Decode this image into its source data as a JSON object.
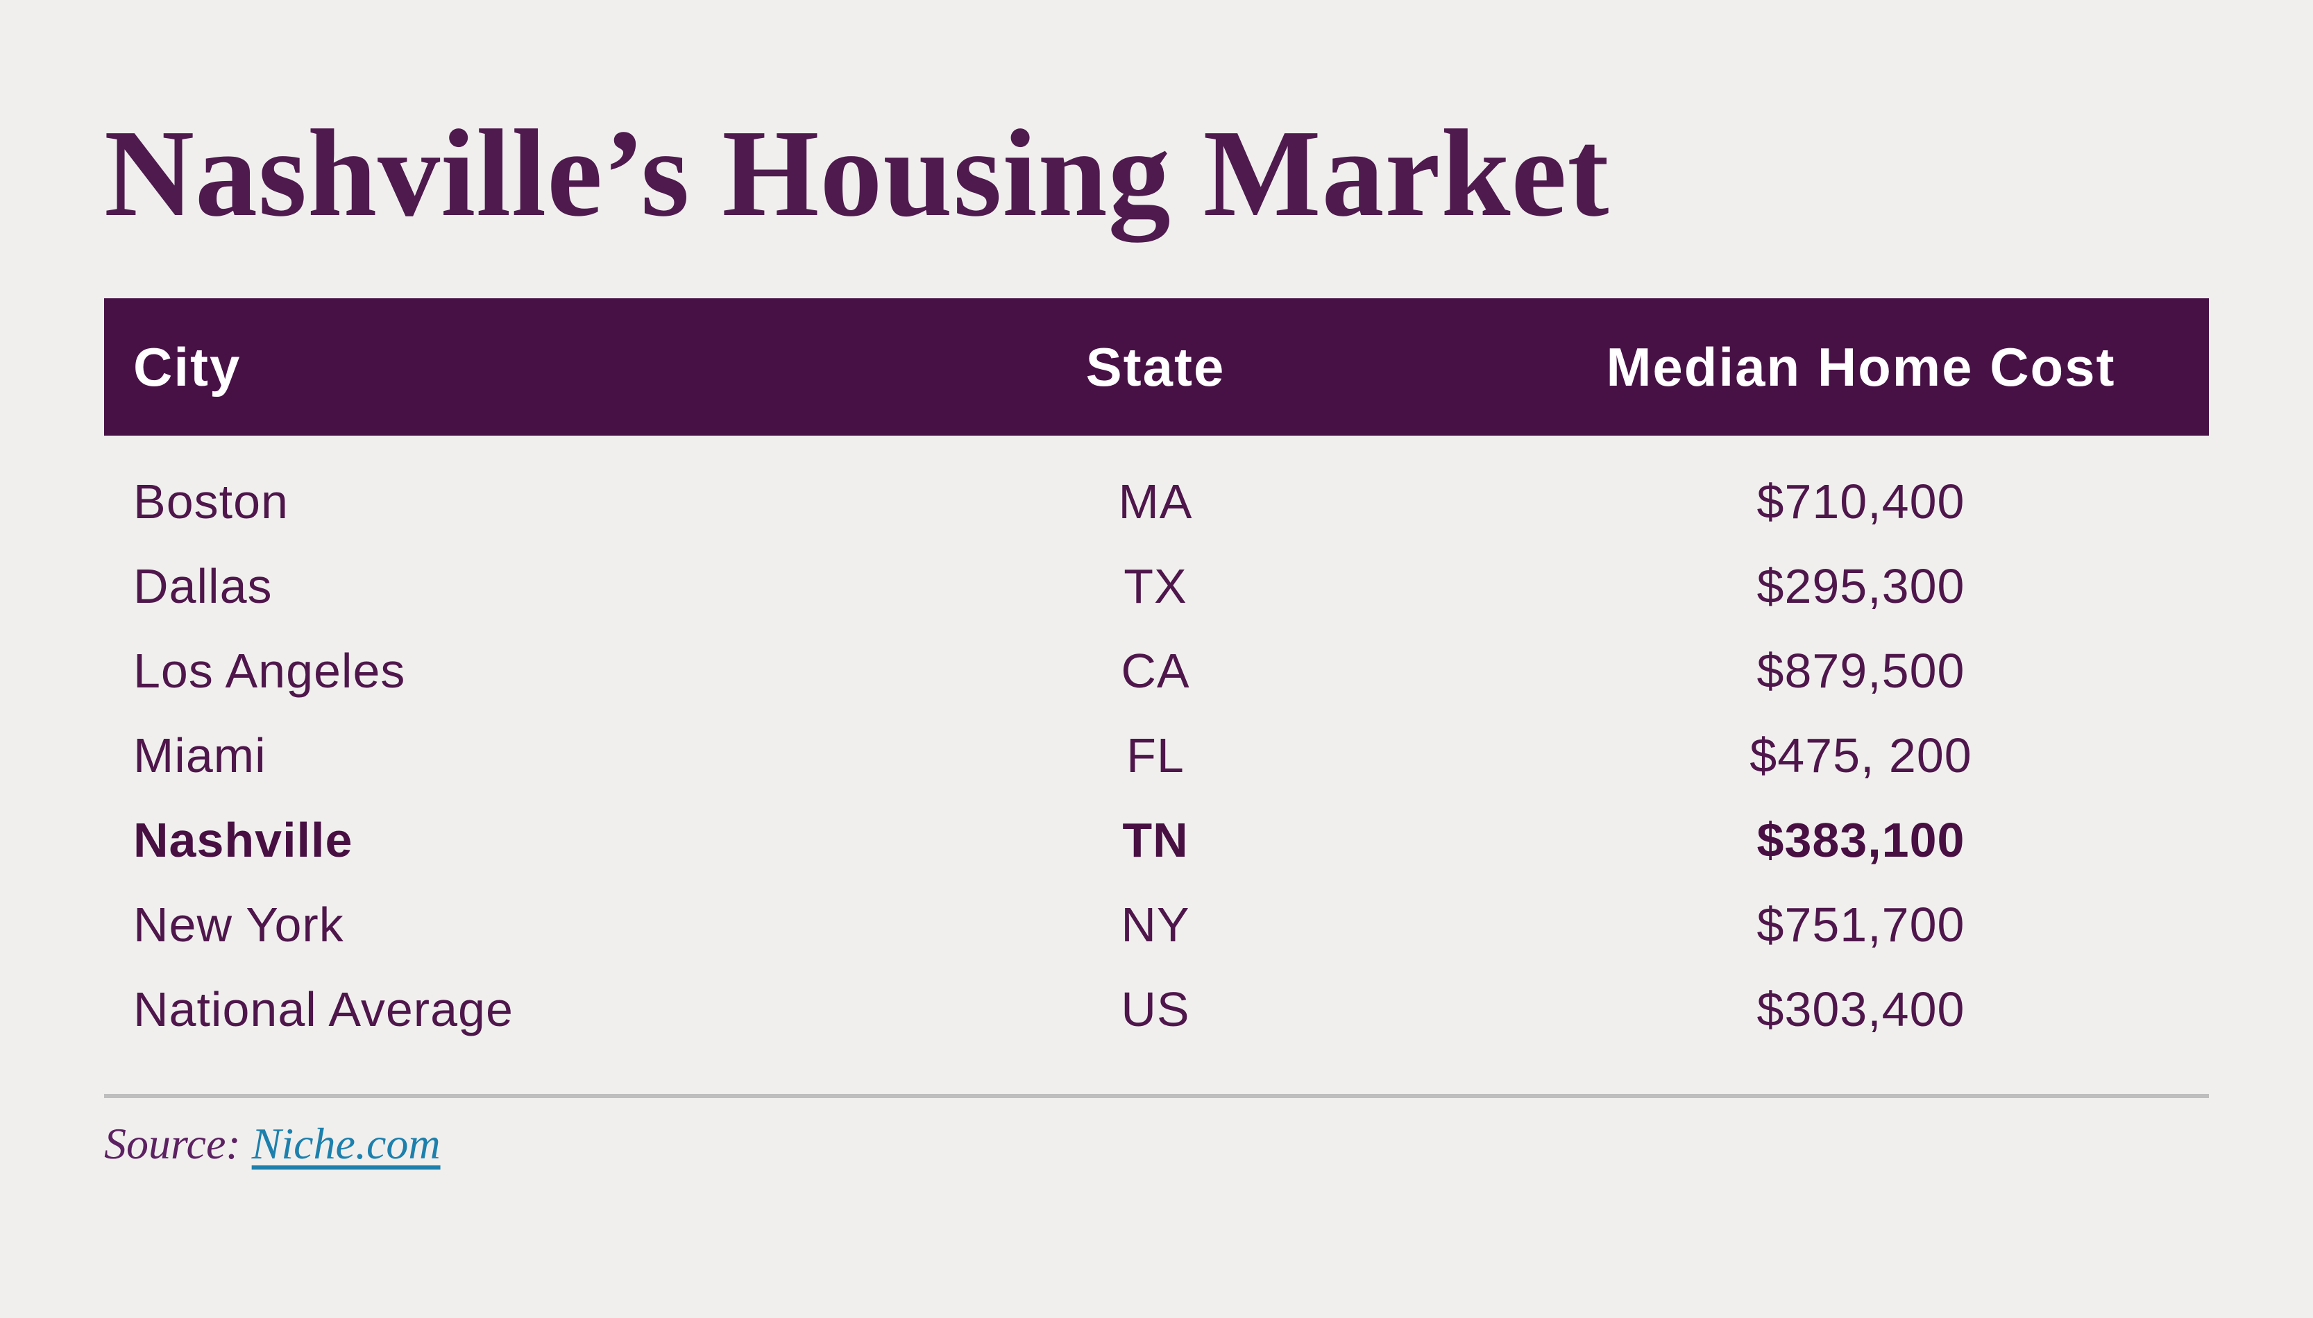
{
  "page": {
    "title": "Nashville’s Housing Market"
  },
  "table": {
    "columns": {
      "city": "City",
      "state": "State",
      "cost": "Median Home Cost"
    },
    "rows": [
      {
        "city": "Boston",
        "state": "MA",
        "cost": "$710,400",
        "highlight": false
      },
      {
        "city": "Dallas",
        "state": "TX",
        "cost": "$295,300",
        "highlight": false
      },
      {
        "city": "Los Angeles",
        "state": "CA",
        "cost": "$879,500",
        "highlight": false
      },
      {
        "city": "Miami",
        "state": "FL",
        "cost": "$475, 200",
        "highlight": false
      },
      {
        "city": "Nashville",
        "state": "TN",
        "cost": "$383,100",
        "highlight": true
      },
      {
        "city": "New York",
        "state": "NY",
        "cost": "$751,700",
        "highlight": false
      },
      {
        "city": "National Average",
        "state": "US",
        "cost": "$303,400",
        "highlight": false
      }
    ]
  },
  "source": {
    "label": "Source:",
    "link_text": "Niche.com"
  },
  "colors": {
    "bg": "#f0efee",
    "header-bg": "#481146",
    "title-color": "#4f1a4e",
    "body-text": "#4e164b",
    "highlight-text": "#470f42",
    "divider": "#bfbebe",
    "source-label": "#5c2161",
    "link-color": "#1d80ac"
  }
}
